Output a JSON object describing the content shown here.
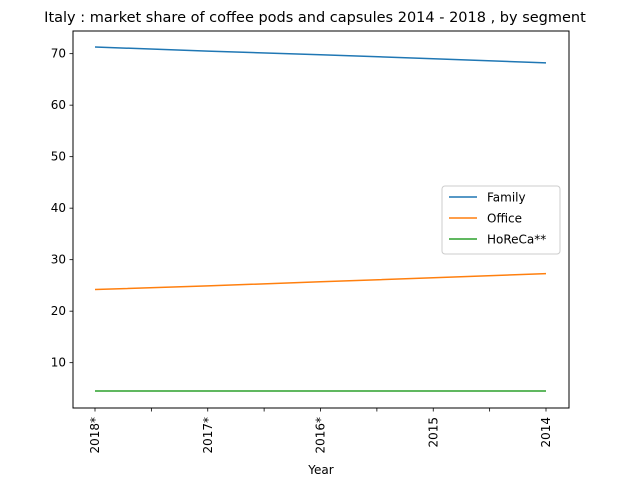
{
  "chart_data": {
    "type": "line",
    "title": "Italy : market share of coffee pods and capsules 2014 - 2018 , by segment",
    "xlabel": "Year",
    "ylabel": "",
    "categories": [
      "2018*",
      "2017*",
      "2016*",
      "2015",
      "2014"
    ],
    "ylim": [
      1.2,
      74.4
    ],
    "yticks": [
      10,
      20,
      30,
      40,
      50,
      60,
      70
    ],
    "grid": false,
    "legend_position": "center-right",
    "series": [
      {
        "name": "Family",
        "color": "#1f77b4",
        "values": [
          71.3,
          70.5,
          69.8,
          69.0,
          68.2
        ]
      },
      {
        "name": "Office",
        "color": "#ff7f0e",
        "values": [
          24.2,
          24.9,
          25.7,
          26.5,
          27.3
        ]
      },
      {
        "name": "HoReCa**",
        "color": "#2ca02c",
        "values": [
          4.5,
          4.5,
          4.5,
          4.5,
          4.5
        ]
      }
    ]
  }
}
